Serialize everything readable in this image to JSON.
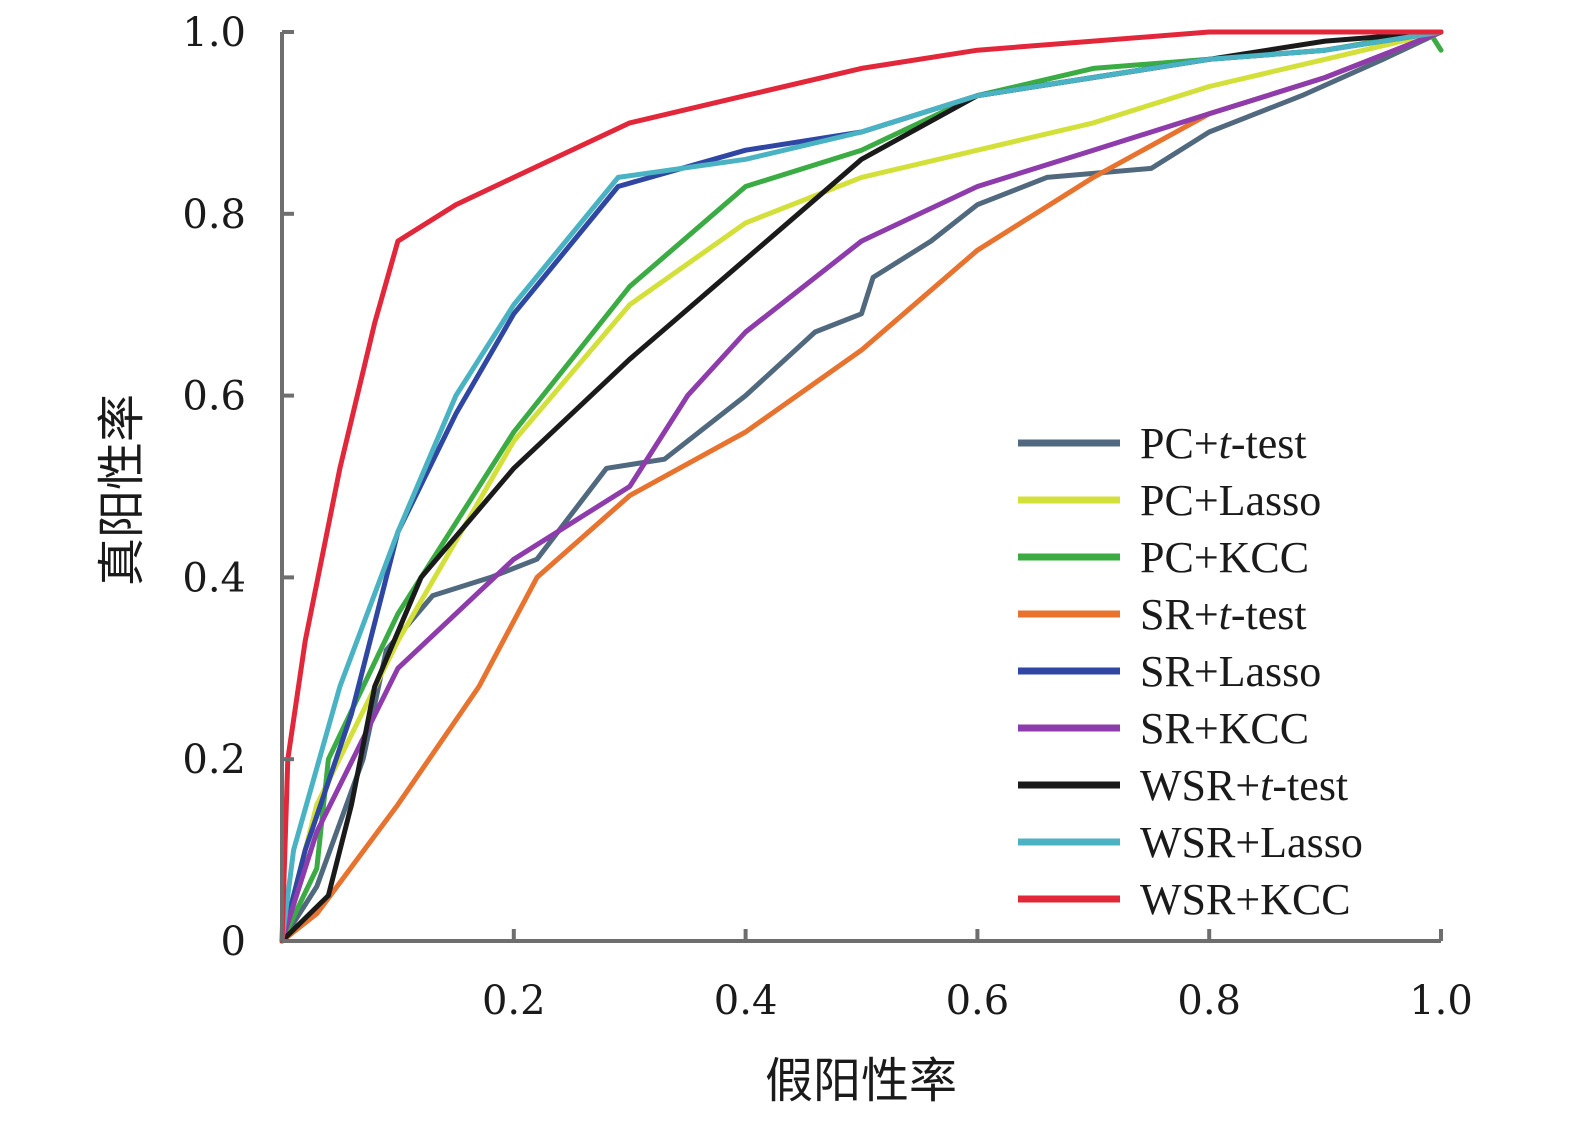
{
  "chart_data": {
    "type": "line",
    "title": "",
    "xlabel": "假阳性率",
    "ylabel": "真阳性率",
    "xlim": [
      0,
      1
    ],
    "ylim": [
      0,
      1
    ],
    "x_ticks": [
      "0.2",
      "0.4",
      "0.6",
      "0.8",
      "1.0"
    ],
    "y_ticks": [
      "0",
      "0.2",
      "0.4",
      "0.6",
      "0.8",
      "1.0"
    ],
    "grid": false,
    "legend_position": "lower-right",
    "series": [
      {
        "name": "PC+t-test",
        "name_main": "PC+",
        "name_italic": "t",
        "name_rest": "-test",
        "color": "#51697e",
        "points": [
          [
            0,
            0
          ],
          [
            0.03,
            0.06
          ],
          [
            0.07,
            0.2
          ],
          [
            0.09,
            0.32
          ],
          [
            0.13,
            0.38
          ],
          [
            0.18,
            0.4
          ],
          [
            0.22,
            0.42
          ],
          [
            0.28,
            0.52
          ],
          [
            0.33,
            0.53
          ],
          [
            0.4,
            0.6
          ],
          [
            0.46,
            0.67
          ],
          [
            0.5,
            0.69
          ],
          [
            0.51,
            0.73
          ],
          [
            0.56,
            0.77
          ],
          [
            0.6,
            0.81
          ],
          [
            0.66,
            0.84
          ],
          [
            0.75,
            0.85
          ],
          [
            0.8,
            0.89
          ],
          [
            0.88,
            0.93
          ],
          [
            0.95,
            0.97
          ],
          [
            1,
            1
          ]
        ]
      },
      {
        "name": "PC+Lasso",
        "name_main": "PC+Lasso",
        "name_italic": "",
        "name_rest": "",
        "color": "#d4e03a",
        "points": [
          [
            0,
            0
          ],
          [
            0.03,
            0.15
          ],
          [
            0.1,
            0.33
          ],
          [
            0.2,
            0.55
          ],
          [
            0.3,
            0.7
          ],
          [
            0.4,
            0.79
          ],
          [
            0.5,
            0.84
          ],
          [
            0.6,
            0.87
          ],
          [
            0.7,
            0.9
          ],
          [
            0.8,
            0.94
          ],
          [
            0.9,
            0.97
          ],
          [
            1,
            1
          ]
        ]
      },
      {
        "name": "PC+KCC",
        "name_main": "PC+KCC",
        "name_italic": "",
        "name_rest": "",
        "color": "#3bab43",
        "points": [
          [
            0,
            0
          ],
          [
            0.03,
            0.08
          ],
          [
            0.04,
            0.2
          ],
          [
            0.1,
            0.36
          ],
          [
            0.2,
            0.56
          ],
          [
            0.3,
            0.72
          ],
          [
            0.4,
            0.83
          ],
          [
            0.5,
            0.87
          ],
          [
            0.6,
            0.93
          ],
          [
            0.7,
            0.96
          ],
          [
            0.8,
            0.97
          ],
          [
            0.9,
            0.98
          ],
          [
            0.99,
            1
          ],
          [
            1,
            0.98
          ]
        ]
      },
      {
        "name": "SR+t-test",
        "name_main": "SR+",
        "name_italic": "t",
        "name_rest": "-test",
        "color": "#e8732f",
        "points": [
          [
            0,
            0
          ],
          [
            0.03,
            0.03
          ],
          [
            0.1,
            0.15
          ],
          [
            0.17,
            0.28
          ],
          [
            0.22,
            0.4
          ],
          [
            0.3,
            0.49
          ],
          [
            0.4,
            0.56
          ],
          [
            0.5,
            0.65
          ],
          [
            0.6,
            0.76
          ],
          [
            0.7,
            0.84
          ],
          [
            0.8,
            0.91
          ],
          [
            0.9,
            0.95
          ],
          [
            1,
            1
          ]
        ]
      },
      {
        "name": "SR+Lasso",
        "name_main": "SR+Lasso",
        "name_italic": "",
        "name_rest": "",
        "color": "#2f47a3",
        "points": [
          [
            0,
            0
          ],
          [
            0.02,
            0.1
          ],
          [
            0.06,
            0.25
          ],
          [
            0.1,
            0.45
          ],
          [
            0.15,
            0.58
          ],
          [
            0.2,
            0.69
          ],
          [
            0.29,
            0.83
          ],
          [
            0.4,
            0.87
          ],
          [
            0.5,
            0.89
          ],
          [
            0.6,
            0.93
          ],
          [
            0.7,
            0.95
          ],
          [
            0.8,
            0.97
          ],
          [
            0.9,
            0.98
          ],
          [
            1,
            1
          ]
        ]
      },
      {
        "name": "SR+KCC",
        "name_main": "SR+KCC",
        "name_italic": "",
        "name_rest": "",
        "color": "#8e3bab",
        "points": [
          [
            0,
            0
          ],
          [
            0.03,
            0.12
          ],
          [
            0.1,
            0.3
          ],
          [
            0.2,
            0.42
          ],
          [
            0.3,
            0.5
          ],
          [
            0.35,
            0.6
          ],
          [
            0.4,
            0.67
          ],
          [
            0.5,
            0.77
          ],
          [
            0.6,
            0.83
          ],
          [
            0.7,
            0.87
          ],
          [
            0.8,
            0.91
          ],
          [
            0.9,
            0.95
          ],
          [
            1,
            1
          ]
        ]
      },
      {
        "name": "WSR+t-test",
        "name_main": "WSR+",
        "name_italic": "t",
        "name_rest": "-test",
        "color": "#1a1a1a",
        "points": [
          [
            0,
            0
          ],
          [
            0.04,
            0.05
          ],
          [
            0.06,
            0.15
          ],
          [
            0.08,
            0.28
          ],
          [
            0.12,
            0.4
          ],
          [
            0.2,
            0.52
          ],
          [
            0.3,
            0.64
          ],
          [
            0.4,
            0.75
          ],
          [
            0.5,
            0.86
          ],
          [
            0.6,
            0.93
          ],
          [
            0.7,
            0.95
          ],
          [
            0.8,
            0.97
          ],
          [
            0.9,
            0.99
          ],
          [
            1,
            1
          ]
        ]
      },
      {
        "name": "WSR+Lasso",
        "name_main": "WSR+Lasso",
        "name_italic": "",
        "name_rest": "",
        "color": "#4ab3c3",
        "points": [
          [
            0,
            0
          ],
          [
            0.01,
            0.1
          ],
          [
            0.05,
            0.28
          ],
          [
            0.1,
            0.45
          ],
          [
            0.15,
            0.6
          ],
          [
            0.2,
            0.7
          ],
          [
            0.29,
            0.84
          ],
          [
            0.4,
            0.86
          ],
          [
            0.5,
            0.89
          ],
          [
            0.6,
            0.93
          ],
          [
            0.7,
            0.95
          ],
          [
            0.8,
            0.97
          ],
          [
            0.9,
            0.98
          ],
          [
            1,
            1
          ]
        ]
      },
      {
        "name": "WSR+KCC",
        "name_main": "WSR+KCC",
        "name_italic": "",
        "name_rest": "",
        "color": "#e3273b",
        "points": [
          [
            0,
            0
          ],
          [
            0.005,
            0.2
          ],
          [
            0.02,
            0.33
          ],
          [
            0.05,
            0.52
          ],
          [
            0.08,
            0.68
          ],
          [
            0.1,
            0.77
          ],
          [
            0.15,
            0.81
          ],
          [
            0.2,
            0.84
          ],
          [
            0.3,
            0.9
          ],
          [
            0.4,
            0.93
          ],
          [
            0.5,
            0.96
          ],
          [
            0.6,
            0.98
          ],
          [
            0.7,
            0.99
          ],
          [
            0.8,
            1
          ],
          [
            1,
            1
          ]
        ]
      }
    ]
  }
}
